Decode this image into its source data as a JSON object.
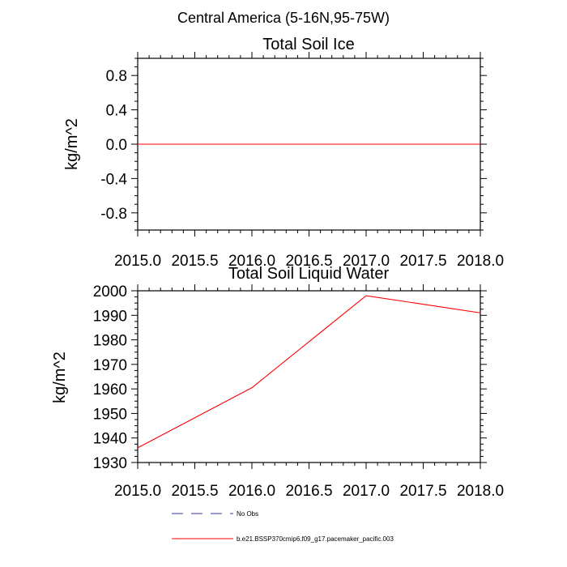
{
  "suptitle": "Central America (5-16N,95-75W)",
  "colors": {
    "series": "#ff0000",
    "obs": "#3333aa",
    "axis": "#000000"
  },
  "chart_data": [
    {
      "type": "line",
      "title": "Total Soil Ice",
      "xlabel": "",
      "ylabel": "kg/m^2",
      "xlim": [
        2015.0,
        2018.0
      ],
      "ylim": [
        -1.0,
        1.0
      ],
      "xticks": [
        2015.0,
        2015.5,
        2016.0,
        2016.5,
        2017.0,
        2017.5,
        2018.0
      ],
      "xtick_labels": [
        "2015.0",
        "2015.5",
        "2016.0",
        "2016.5",
        "2017.0",
        "2017.5",
        "2018.0"
      ],
      "yticks": [
        0.8,
        0.4,
        0.0,
        -0.4,
        -0.8
      ],
      "ytick_labels": [
        "0.8",
        "0.4",
        "0.0",
        "-0.4",
        "-0.8"
      ],
      "series": [
        {
          "name": "b.e21.BSSP370cmip6.f09_g17.pacemaker_pacific.003",
          "x": [
            2015,
            2016,
            2017,
            2018
          ],
          "values": [
            0,
            0,
            0,
            0
          ]
        }
      ]
    },
    {
      "type": "line",
      "title": "Total Soil Liquid Water",
      "xlabel": "",
      "ylabel": "kg/m^2",
      "xlim": [
        2015.0,
        2018.0
      ],
      "ylim": [
        1930,
        2000
      ],
      "xticks": [
        2015.0,
        2015.5,
        2016.0,
        2016.5,
        2017.0,
        2017.5,
        2018.0
      ],
      "xtick_labels": [
        "2015.0",
        "2015.5",
        "2016.0",
        "2016.5",
        "2017.0",
        "2017.5",
        "2018.0"
      ],
      "yticks": [
        2000,
        1990,
        1980,
        1970,
        1960,
        1950,
        1940,
        1930
      ],
      "ytick_labels": [
        "2000",
        "1990",
        "1980",
        "1970",
        "1960",
        "1950",
        "1940",
        "1930"
      ],
      "series": [
        {
          "name": "b.e21.BSSP370cmip6.f09_g17.pacemaker_pacific.003",
          "x": [
            2015,
            2016,
            2017,
            2018
          ],
          "values": [
            1936,
            1960.5,
            1998,
            1991
          ]
        }
      ]
    }
  ],
  "legend": [
    {
      "label": "No Obs",
      "style": "dashed"
    },
    {
      "label": "b.e21.BSSP370cmip6.f09_g17.pacemaker_pacific.003",
      "style": "solid"
    }
  ]
}
